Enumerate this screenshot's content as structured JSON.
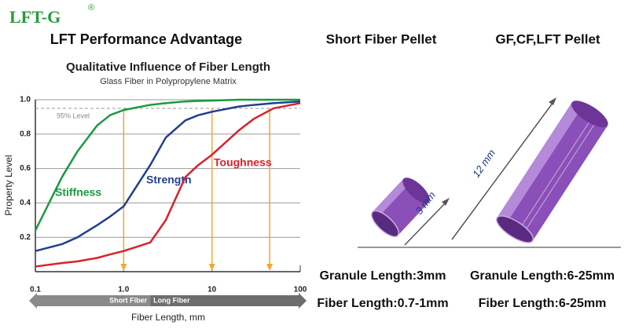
{
  "logo": "LFT-G",
  "logo_mark": "®",
  "heading": "LFT Performance Advantage",
  "panels": [
    {
      "title": "Short Fiber Pellet",
      "dimension": "3 mm",
      "granule": "Granule Length:3mm",
      "fiber": "Fiber Length:0.7-1mm"
    },
    {
      "title": "GF,CF,LFT Pellet",
      "dimension": "12 mm",
      "granule": "Granule Length:6-25mm",
      "fiber": "Fiber Length:6-25mm"
    }
  ],
  "chart_data": {
    "type": "line",
    "title": "Qualitative Influence of Fiber Length",
    "subtitle": "Glass Fiber in Polypropylene Matrix",
    "x_label": "Fiber Length, mm",
    "y_label": "Property Level",
    "xlog": true,
    "xlim": [
      0.1,
      100
    ],
    "xticks": [
      0.1,
      {
        "value": 1,
        "label": "1.0"
      },
      10,
      100
    ],
    "ylim": [
      0,
      1
    ],
    "yticks": [
      0.2,
      0.4,
      0.6,
      0.8,
      {
        "value": 1,
        "label": "1.0"
      }
    ],
    "grid": true,
    "level": {
      "value": 0.95,
      "label": "95% Level"
    },
    "arrows_x": [
      1,
      10,
      45
    ],
    "fiber_ranges": [
      {
        "label": "Short Fiber",
        "from": 0.1,
        "to": 2
      },
      {
        "label": "Long Fiber",
        "from": 2,
        "to": 100
      }
    ],
    "x": [
      0.1,
      0.2,
      0.3,
      0.5,
      0.7,
      1,
      2,
      3,
      5,
      7,
      10,
      20,
      30,
      50,
      100
    ],
    "series": [
      {
        "name": "Stiffness",
        "color": "#1a9a3e",
        "values": [
          0.24,
          0.55,
          0.7,
          0.85,
          0.91,
          0.94,
          0.97,
          0.98,
          0.99,
          0.993,
          0.995,
          1,
          1,
          1,
          1
        ]
      },
      {
        "name": "Strength",
        "color": "#223f8f",
        "values": [
          0.12,
          0.16,
          0.2,
          0.27,
          0.32,
          0.38,
          0.62,
          0.78,
          0.88,
          0.91,
          0.93,
          0.96,
          0.97,
          0.98,
          0.99
        ]
      },
      {
        "name": "Toughness",
        "color": "#d8232a",
        "values": [
          0.03,
          0.05,
          0.06,
          0.08,
          0.1,
          0.12,
          0.17,
          0.3,
          0.55,
          0.62,
          0.68,
          0.82,
          0.89,
          0.95,
          0.98
        ]
      }
    ]
  }
}
